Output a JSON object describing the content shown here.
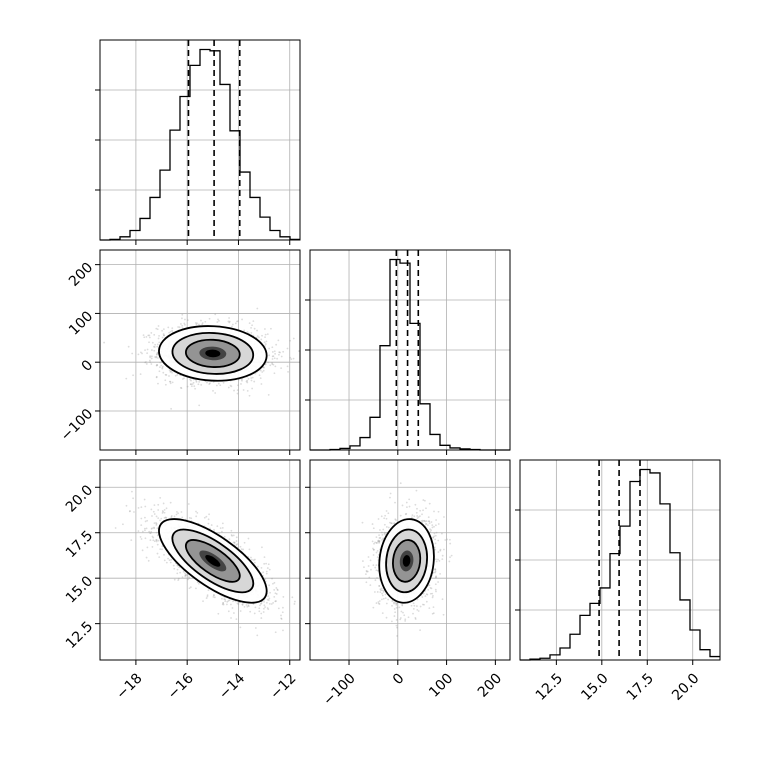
{
  "chart_data": {
    "type": "corner",
    "parameters": [
      {
        "range": [
          -19.4,
          -11.6
        ],
        "ticks": [
          -18,
          -16,
          -14,
          -12
        ],
        "tick_labels": [
          "−18",
          "−16",
          "−14",
          "−12"
        ],
        "quantiles": [
          -15.95,
          -14.95,
          -13.95
        ],
        "hist_edges_start": -19.4,
        "hist_bin_width": 0.39,
        "hist_counts": [
          0,
          1,
          5,
          15,
          34,
          67,
          110,
          173,
          226,
          275,
          300,
          298,
          245,
          172,
          107,
          67,
          36,
          15,
          5,
          1
        ]
      },
      {
        "range": [
          -180,
          230
        ],
        "ticks": [
          -100,
          0,
          100,
          200
        ],
        "tick_labels": [
          "−100",
          "0",
          "100",
          "200"
        ],
        "quantiles": [
          -3,
          20,
          42
        ],
        "hist_edges_start": -180,
        "hist_bin_width": 20.5,
        "hist_counts": [
          0,
          0,
          1,
          3,
          8,
          24,
          63,
          201,
          367,
          360,
          244,
          89,
          30,
          9,
          4,
          2,
          1,
          0,
          0,
          0
        ]
      },
      {
        "range": [
          10.5,
          21.5
        ],
        "ticks": [
          12.5,
          15.0,
          17.5,
          20.0
        ],
        "tick_labels": [
          "12.5",
          "15.0",
          "17.5",
          "20.0"
        ],
        "quantiles": [
          14.85,
          15.95,
          17.1
        ],
        "hist_edges_start": 10.5,
        "hist_bin_width": 0.55,
        "hist_counts": [
          0,
          1,
          2,
          6,
          14,
          30,
          52,
          66,
          84,
          124,
          156,
          208,
          222,
          218,
          182,
          125,
          70,
          35,
          12,
          4
        ]
      }
    ],
    "pairs": [
      {
        "x_param": 0,
        "y_param": 1,
        "center": [
          -15.0,
          18
        ],
        "sd": [
          1.05,
          28
        ],
        "rho": -0.08
      },
      {
        "x_param": 0,
        "y_param": 2,
        "center": [
          -15.0,
          15.95
        ],
        "sd": [
          1.05,
          1.15
        ],
        "rho": -0.72
      },
      {
        "x_param": 1,
        "y_param": 2,
        "center": [
          18,
          15.95
        ],
        "sd": [
          28,
          1.15
        ],
        "rho": 0.1
      }
    ],
    "contour_levels": [
      0.5,
      1.0,
      1.5,
      2.0
    ],
    "grid": true
  }
}
